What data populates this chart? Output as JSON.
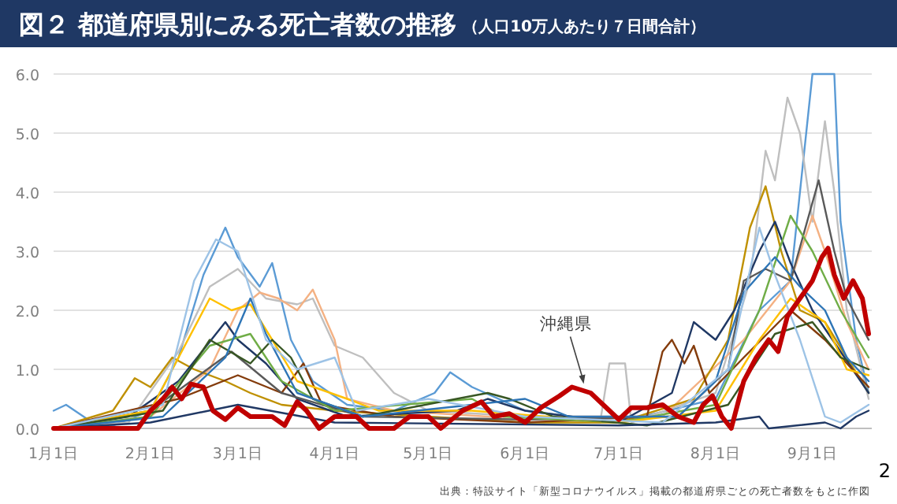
{
  "chart_data": {
    "type": "line",
    "title": "図２ 都道府県別にみる死亡者数の推移",
    "subtitle": "（人口10万人あたり７日間合計）",
    "xlim": [
      "--01-01",
      "--09-20"
    ],
    "xticks": [
      {
        "value": "--01-01",
        "label": "1月1日"
      },
      {
        "value": "--02-01",
        "label": "2月1日"
      },
      {
        "value": "--03-01",
        "label": "3月1日"
      },
      {
        "value": "--04-01",
        "label": "4月1日"
      },
      {
        "value": "--05-01",
        "label": "5月1日"
      },
      {
        "value": "--06-01",
        "label": "6月1日"
      },
      {
        "value": "--07-01",
        "label": "7月1日"
      },
      {
        "value": "--08-01",
        "label": "8月1日"
      },
      {
        "value": "--09-01",
        "label": "9月1日"
      }
    ],
    "ylim": [
      0,
      6
    ],
    "yticks": [
      {
        "value": 0,
        "label": "0.0"
      },
      {
        "value": 1,
        "label": "1.0"
      },
      {
        "value": 2,
        "label": "2.0"
      },
      {
        "value": 3,
        "label": "3.0"
      },
      {
        "value": 4,
        "label": "4.0"
      },
      {
        "value": 5,
        "label": "5.0"
      },
      {
        "value": 6,
        "label": "6.0"
      }
    ],
    "grid": "y",
    "annotations": [
      {
        "text": "沖縄県",
        "x": "--06-20",
        "y": 0.7
      },
      "出典：特設サイト「新型コロナウイルス」掲載の都道府県ごとの死亡者数をもとに作図",
      "2"
    ],
    "series": [
      {
        "color": "#5b9bd5",
        "x": [
          "--01-01",
          "--01-05",
          "--01-12",
          "--01-20",
          "--02-01",
          "--02-10",
          "--02-18",
          "--02-25",
          "--03-01",
          "--03-08",
          "--03-12",
          "--03-18",
          "--03-25",
          "--04-05",
          "--04-20",
          "--05-03",
          "--05-08",
          "--05-15",
          "--06-01",
          "--07-01",
          "--08-01",
          "--08-15",
          "--08-25",
          "--09-01",
          "--09-05",
          "--09-08",
          "--09-10",
          "--09-15",
          "--09-19"
        ],
        "values": [
          0.3,
          0.4,
          0.15,
          0.05,
          0.3,
          1.2,
          2.6,
          3.4,
          2.9,
          2.4,
          2.8,
          1.5,
          0.8,
          0.4,
          0.3,
          0.6,
          0.95,
          0.7,
          0.3,
          0.1,
          0.5,
          2.0,
          2.5,
          6.0,
          6.0,
          6.0,
          3.5,
          1.5,
          0.6
        ]
      },
      {
        "color": "#bfbfbf",
        "x": [
          "--01-01",
          "--01-25",
          "--02-10",
          "--02-20",
          "--03-01",
          "--03-10",
          "--03-20",
          "--03-25",
          "--04-01",
          "--04-10",
          "--04-20",
          "--05-01",
          "--06-01",
          "--06-25",
          "--06-28",
          "--07-03",
          "--07-05",
          "--08-01",
          "--08-12",
          "--08-17",
          "--08-20",
          "--08-24",
          "--08-28",
          "--09-01",
          "--09-05",
          "--09-08",
          "--09-12",
          "--09-19"
        ],
        "values": [
          0,
          0.1,
          1.3,
          2.4,
          2.7,
          2.2,
          2.1,
          2.2,
          1.4,
          1.2,
          0.6,
          0.3,
          0.2,
          0.1,
          1.1,
          1.1,
          0.1,
          0.6,
          2.5,
          4.7,
          4.2,
          5.6,
          5.0,
          3.5,
          5.2,
          4.0,
          2.0,
          0.5
        ]
      },
      {
        "color": "#f4b183",
        "x": [
          "--01-01",
          "--02-01",
          "--02-20",
          "--03-01",
          "--03-08",
          "--03-14",
          "--03-20",
          "--03-25",
          "--04-01",
          "--04-05",
          "--04-20",
          "--05-20",
          "--07-15",
          "--08-10",
          "--08-25",
          "--09-01",
          "--09-05",
          "--09-12",
          "--09-19"
        ],
        "values": [
          0,
          0.2,
          1.0,
          2.0,
          2.3,
          2.2,
          2.0,
          2.35,
          1.5,
          0.5,
          0.3,
          0.2,
          0.2,
          1.5,
          2.5,
          3.6,
          3.0,
          1.8,
          1.0
        ]
      },
      {
        "color": "#bf9000",
        "x": [
          "--01-01",
          "--01-20",
          "--01-27",
          "--02-01",
          "--02-08",
          "--02-15",
          "--02-25",
          "--03-05",
          "--03-15",
          "--04-01",
          "--05-01",
          "--06-01",
          "--07-01",
          "--07-25",
          "--08-05",
          "--08-12",
          "--08-17",
          "--08-22",
          "--08-28",
          "--09-05",
          "--09-12",
          "--09-19"
        ],
        "values": [
          0,
          0.3,
          0.85,
          0.7,
          1.2,
          1.0,
          0.8,
          0.6,
          0.4,
          0.3,
          0.2,
          0.1,
          0.1,
          0.5,
          1.5,
          3.4,
          4.1,
          3.0,
          2.0,
          1.8,
          1.2,
          0.6
        ]
      },
      {
        "color": "#1f3864",
        "x": [
          "--01-01",
          "--01-25",
          "--02-10",
          "--02-25",
          "--03-01",
          "--03-10",
          "--03-20",
          "--04-05",
          "--05-10",
          "--05-20",
          "--06-01",
          "--07-01",
          "--07-18",
          "--07-25",
          "--08-01",
          "--08-07",
          "--08-15",
          "--08-20",
          "--08-25",
          "--09-01",
          "--09-10",
          "--09-19"
        ],
        "values": [
          0,
          0.2,
          0.8,
          1.8,
          1.5,
          1.1,
          0.5,
          0.2,
          0.3,
          0.5,
          0.3,
          0.1,
          0.6,
          1.8,
          1.5,
          2.0,
          3.0,
          3.5,
          2.8,
          2.0,
          1.3,
          0.6
        ]
      },
      {
        "color": "#843c0c",
        "x": [
          "--01-01",
          "--02-10",
          "--03-01",
          "--03-15",
          "--03-22",
          "--03-28",
          "--04-20",
          "--06-01",
          "--07-10",
          "--07-15",
          "--07-18",
          "--07-22",
          "--07-25",
          "--07-30",
          "--08-10",
          "--08-25",
          "--09-05",
          "--09-19"
        ],
        "values": [
          0,
          0.5,
          0.9,
          0.6,
          1.1,
          0.4,
          0.2,
          0.1,
          0.2,
          1.3,
          1.5,
          1.1,
          1.4,
          0.6,
          1.2,
          2.0,
          1.5,
          0.7
        ]
      },
      {
        "color": "#595959",
        "x": [
          "--01-01",
          "--02-01",
          "--02-27",
          "--03-15",
          "--04-10",
          "--06-01",
          "--07-20",
          "--08-05",
          "--08-10",
          "--08-17",
          "--08-25",
          "--09-03",
          "--09-08",
          "--09-12",
          "--09-19"
        ],
        "values": [
          0,
          0.3,
          1.3,
          0.6,
          0.2,
          0.15,
          0.2,
          1.0,
          2.5,
          2.7,
          2.5,
          4.2,
          3.0,
          2.2,
          1.5
        ]
      },
      {
        "color": "#70ad47",
        "x": [
          "--01-01",
          "--02-01",
          "--02-20",
          "--03-05",
          "--03-15",
          "--04-01",
          "--05-15",
          "--05-25",
          "--07-01",
          "--08-01",
          "--08-15",
          "--08-25",
          "--09-01",
          "--09-10",
          "--09-19"
        ],
        "values": [
          0,
          0.2,
          1.4,
          1.6,
          0.8,
          0.3,
          0.5,
          0.2,
          0.1,
          0.4,
          2.0,
          3.6,
          3.0,
          2.0,
          1.2
        ]
      },
      {
        "color": "#ffc000",
        "x": [
          "--01-01",
          "--02-01",
          "--02-20",
          "--02-27",
          "--03-05",
          "--03-12",
          "--03-20",
          "--04-05",
          "--04-15",
          "--05-15",
          "--07-01",
          "--08-01",
          "--08-15",
          "--08-25",
          "--09-05",
          "--09-12",
          "--09-19"
        ],
        "values": [
          0,
          0.3,
          2.2,
          2.0,
          2.1,
          1.5,
          0.8,
          0.5,
          0.3,
          0.3,
          0.1,
          0.3,
          1.5,
          2.2,
          1.8,
          1.0,
          0.9
        ]
      },
      {
        "color": "#375623",
        "x": [
          "--01-01",
          "--02-05",
          "--02-20",
          "--03-05",
          "--03-12",
          "--03-18",
          "--03-25",
          "--04-10",
          "--05-20",
          "--05-27",
          "--06-10",
          "--07-10",
          "--08-05",
          "--08-20",
          "--09-01",
          "--09-10",
          "--09-19"
        ],
        "values": [
          0,
          0.3,
          1.5,
          1.1,
          1.5,
          1.2,
          0.5,
          0.2,
          0.6,
          0.5,
          0.2,
          0.05,
          0.4,
          1.6,
          1.8,
          1.2,
          1.0
        ]
      },
      {
        "color": "#2e75b6",
        "x": [
          "--01-01",
          "--02-05",
          "--02-25",
          "--03-05",
          "--03-10",
          "--03-20",
          "--04-10",
          "--05-15",
          "--06-01",
          "--06-15",
          "--07-20",
          "--08-01",
          "--08-10",
          "--08-20",
          "--08-28",
          "--09-05",
          "--09-12",
          "--09-19"
        ],
        "values": [
          0,
          0.2,
          1.2,
          2.2,
          1.6,
          0.6,
          0.2,
          0.4,
          0.5,
          0.2,
          0.2,
          0.8,
          2.3,
          2.9,
          2.4,
          2.0,
          1.2,
          0.8
        ]
      },
      {
        "color": "#9dc3e6",
        "x": [
          "--01-01",
          "--02-05",
          "--02-15",
          "--02-22",
          "--03-01",
          "--03-10",
          "--03-20",
          "--04-01",
          "--04-08",
          "--05-01",
          "--06-01",
          "--07-15",
          "--08-05",
          "--08-15",
          "--08-20",
          "--08-28",
          "--09-05",
          "--09-10",
          "--09-19"
        ],
        "values": [
          0,
          0.4,
          2.5,
          3.2,
          3.0,
          1.5,
          1.0,
          1.2,
          0.3,
          0.5,
          0.2,
          0.1,
          1.0,
          3.4,
          2.6,
          1.5,
          0.2,
          0.1,
          0.4
        ]
      },
      {
        "color": "#203864",
        "x": [
          "--01-01",
          "--02-01",
          "--03-01",
          "--04-01",
          "--07-01",
          "--08-01",
          "--08-15",
          "--08-18",
          "--09-05",
          "--09-10",
          "--09-15",
          "--09-19"
        ],
        "values": [
          0,
          0.1,
          0.4,
          0.1,
          0.05,
          0.1,
          0.2,
          0,
          0.1,
          0,
          0.2,
          0.3
        ]
      },
      {
        "color": "#c00000",
        "x": [
          "--01-01",
          "--01-28",
          "--02-01",
          "--02-05",
          "--02-08",
          "--02-11",
          "--02-14",
          "--02-18",
          "--02-21",
          "--02-25",
          "--03-01",
          "--03-05",
          "--03-12",
          "--03-16",
          "--03-20",
          "--03-23",
          "--03-27",
          "--04-01",
          "--04-08",
          "--04-12",
          "--04-20",
          "--04-25",
          "--05-01",
          "--05-05",
          "--05-12",
          "--05-18",
          "--05-22",
          "--05-27",
          "--06-01",
          "--06-06",
          "--06-12",
          "--06-16",
          "--06-22",
          "--06-27",
          "--07-01",
          "--07-05",
          "--07-10",
          "--07-15",
          "--07-20",
          "--07-25",
          "--07-28",
          "--07-31",
          "--08-03",
          "--08-06",
          "--08-10",
          "--08-14",
          "--08-18",
          "--08-21",
          "--08-24",
          "--08-28",
          "--09-01",
          "--09-04",
          "--09-06",
          "--09-08",
          "--09-11",
          "--09-14",
          "--09-17",
          "--09-19"
        ],
        "values": [
          0,
          0,
          0.3,
          0.5,
          0.7,
          0.5,
          0.75,
          0.7,
          0.3,
          0.15,
          0.35,
          0.2,
          0.2,
          0.05,
          0.45,
          0.3,
          0,
          0.2,
          0.2,
          0,
          0,
          0.2,
          0.2,
          0,
          0.3,
          0.45,
          0.2,
          0.25,
          0.1,
          0.35,
          0.55,
          0.7,
          0.6,
          0.35,
          0.15,
          0.35,
          0.35,
          0.4,
          0.2,
          0.1,
          0.4,
          0.55,
          0.2,
          0,
          0.8,
          1.2,
          1.5,
          1.3,
          1.9,
          2.2,
          2.5,
          2.9,
          3.05,
          2.6,
          2.2,
          2.5,
          2.2,
          1.6
        ]
      }
    ]
  }
}
